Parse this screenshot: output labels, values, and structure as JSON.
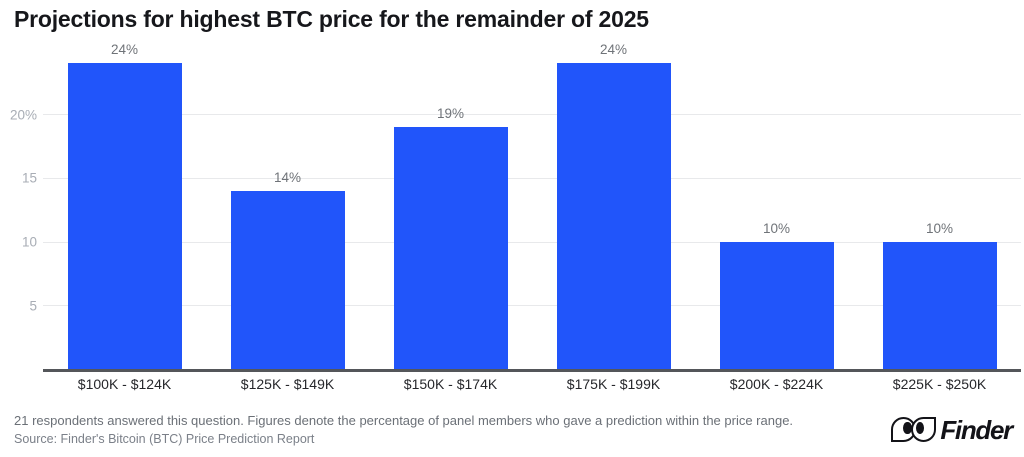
{
  "title": "Projections for highest BTC price for the remainder of 2025",
  "chart_data": {
    "type": "bar",
    "title": "Projections for highest BTC price for the remainder of 2025",
    "categories": [
      "$100K - $124K",
      "$125K - $149K",
      "$150K - $174K",
      "$175K - $199K",
      "$200K - $224K",
      "$225K - $250K"
    ],
    "values": [
      24,
      14,
      19,
      24,
      10,
      10
    ],
    "value_labels": [
      "24%",
      "14%",
      "19%",
      "24%",
      "10%",
      "10%"
    ],
    "xlabel": "",
    "ylabel": "",
    "ylim": [
      0,
      24
    ],
    "yticks": [
      {
        "value": 5,
        "label": "5"
      },
      {
        "value": 10,
        "label": "10"
      },
      {
        "value": 15,
        "label": "15"
      },
      {
        "value": 20,
        "label": "20%"
      }
    ],
    "grid": true,
    "legend": "none",
    "bar_color": "#2155fa"
  },
  "footer": {
    "note": "21 respondents answered this question. Figures denote the percentage of panel members who gave a prediction within the price range.",
    "source": "Source: Finder's Bitcoin (BTC) Price Prediction Report"
  },
  "logo": {
    "text": "Finder",
    "icon": "finder-eyes-logo"
  },
  "colors": {
    "bar": "#2155fa",
    "axis_line": "#54565a",
    "gridline": "#e8e9eb",
    "ytick_label": "#a8adb5",
    "value_label": "#6f7378",
    "xtick_label": "#26272b",
    "title": "#16171b"
  }
}
